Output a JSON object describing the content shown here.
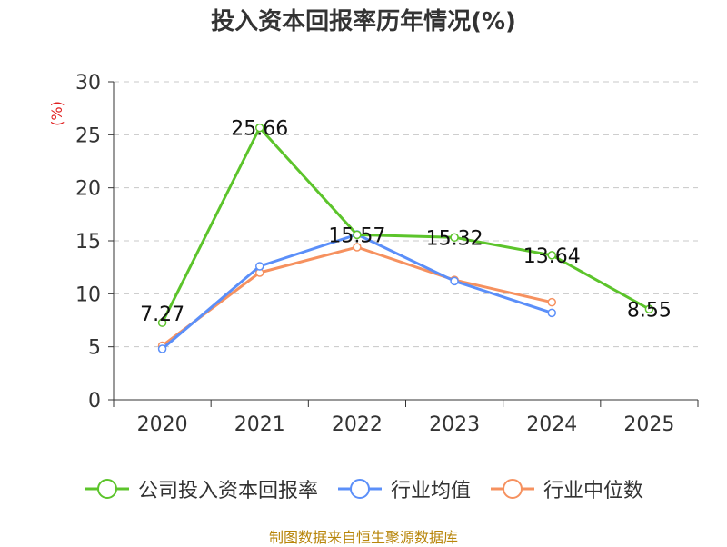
{
  "title": "投入资本回报率历年情况(%)",
  "source": "制图数据来自恒生聚源数据库",
  "chart_data": {
    "type": "line",
    "title": "投入资本回报率历年情况(%)",
    "ylabel": "(%)",
    "xlabel": "",
    "categories": [
      "2020",
      "2021",
      "2022",
      "2023",
      "2024",
      "2025"
    ],
    "ylim": [
      0,
      30
    ],
    "yticks": [
      "0",
      "5",
      "10",
      "15",
      "20",
      "25",
      "30"
    ],
    "grid": true,
    "legend_position": "bottom",
    "series": [
      {
        "name": "公司投入资本回报率",
        "color": "#5cc42b",
        "values": [
          7.27,
          25.66,
          15.57,
          15.32,
          13.64,
          8.55
        ],
        "labels": [
          "7.27",
          "25.66",
          "15.57",
          "15.32",
          "13.64",
          "8.55"
        ]
      },
      {
        "name": "行业均值",
        "color": "#5b8ff9",
        "values": [
          4.8,
          12.6,
          15.6,
          11.2,
          8.2,
          null
        ]
      },
      {
        "name": "行业中位数",
        "color": "#f6915f",
        "values": [
          5.1,
          12.0,
          14.4,
          11.3,
          9.2,
          null
        ]
      }
    ]
  }
}
